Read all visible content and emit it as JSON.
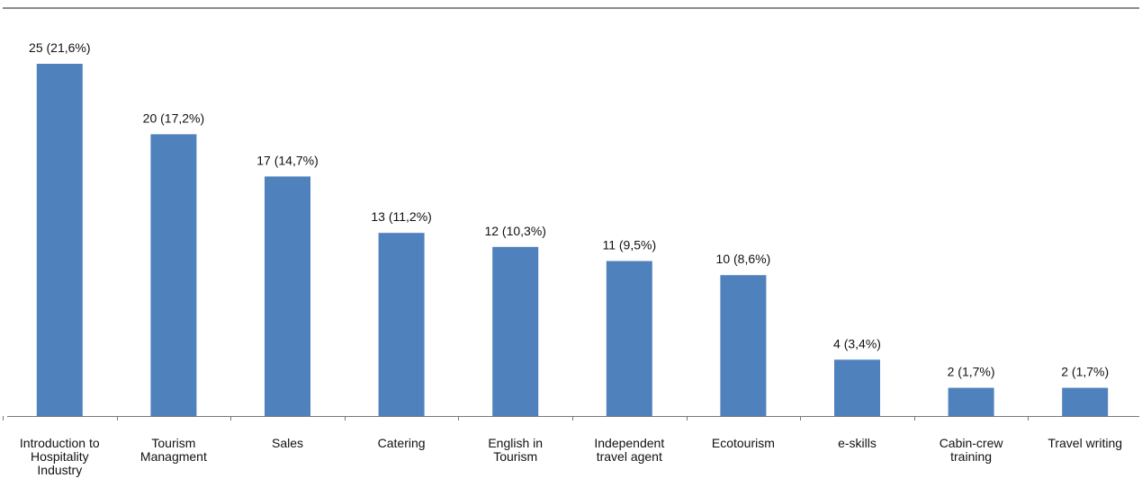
{
  "chart_data": {
    "type": "bar",
    "categories": [
      [
        "Introduction to",
        "Hospitality",
        "Industry"
      ],
      [
        "Tourism",
        "Managment"
      ],
      [
        "Sales"
      ],
      [
        "Catering"
      ],
      [
        "English in",
        "Tourism"
      ],
      [
        "Independent",
        "travel agent"
      ],
      [
        "Ecotourism"
      ],
      [
        "e-skills"
      ],
      [
        "Cabin-crew",
        "training"
      ],
      [
        "Travel writing"
      ]
    ],
    "values": [
      25,
      20,
      17,
      13,
      12,
      11,
      10,
      4,
      2,
      2
    ],
    "data_labels": [
      "25 (21,6%)",
      "20 (17,2%)",
      "17 (14,7%)",
      "13 (11,2%)",
      "12 (10,3%)",
      "11 (9,5%)",
      "10 (8,6%)",
      "4 (3,4%)",
      "2 (1,7%)",
      "2 (1,7%)"
    ],
    "ylim": [
      0,
      25
    ],
    "grid": false,
    "legend": "none",
    "colors": {
      "bar": "#4f81bd",
      "axis": "#777777",
      "top_rule": "#8c8c8c",
      "text": "#111111"
    }
  }
}
